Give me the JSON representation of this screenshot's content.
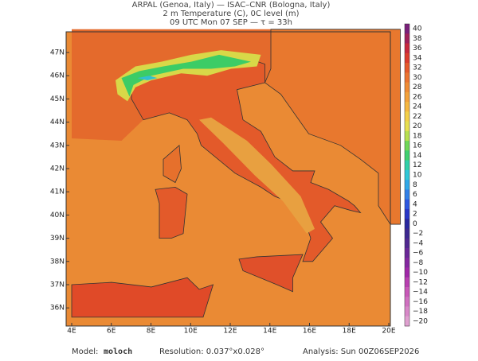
{
  "header": {
    "lines": [
      "ARPAL (Genoa, Italy)  —  ISAC–CNR (Bologna, Italy)",
      "2 m Temperature (C), 0C level (m)",
      "09 UTC Mon 07 SEP  —  τ = 33h"
    ]
  },
  "axes": {
    "lon_ticks": [
      "4E",
      "6E",
      "8E",
      "10E",
      "12E",
      "14E",
      "16E",
      "18E",
      "20E"
    ],
    "lat_ticks": [
      "47N",
      "46N",
      "45N",
      "44N",
      "43N",
      "42N",
      "41N",
      "40N",
      "39N",
      "38N",
      "37N",
      "36N"
    ]
  },
  "colorbar": [
    {
      "label": "40",
      "color": "#7a1f7a"
    },
    {
      "label": "38",
      "color": "#a0205a"
    },
    {
      "label": "36",
      "color": "#c8283c"
    },
    {
      "label": "34",
      "color": "#dc3c2c"
    },
    {
      "label": "32",
      "color": "#e65a2a"
    },
    {
      "label": "30",
      "color": "#ec7430"
    },
    {
      "label": "28",
      "color": "#f08c34"
    },
    {
      "label": "26",
      "color": "#f4a23a"
    },
    {
      "label": "24",
      "color": "#f6b840"
    },
    {
      "label": "22",
      "color": "#f4d048"
    },
    {
      "label": "20",
      "color": "#e8e050"
    },
    {
      "label": "18",
      "color": "#b8e050"
    },
    {
      "label": "16",
      "color": "#70d858"
    },
    {
      "label": "14",
      "color": "#40d070"
    },
    {
      "label": "12",
      "color": "#30d0a8"
    },
    {
      "label": "10",
      "color": "#30c8d8"
    },
    {
      "label": "8",
      "color": "#30a8e8"
    },
    {
      "label": "6",
      "color": "#3080e8"
    },
    {
      "label": "4",
      "color": "#2c58e0"
    },
    {
      "label": "2",
      "color": "#2838c8"
    },
    {
      "label": "0",
      "color": "#2828a0"
    },
    {
      "label": "−2",
      "color": "#3c2890"
    },
    {
      "label": "−4",
      "color": "#502890"
    },
    {
      "label": "−6",
      "color": "#6a2898"
    },
    {
      "label": "−8",
      "color": "#8428a0"
    },
    {
      "label": "−10",
      "color": "#a028a8"
    },
    {
      "label": "−12",
      "color": "#b840b0"
    },
    {
      "label": "−14",
      "color": "#c858b8"
    },
    {
      "label": "−16",
      "color": "#d070c0"
    },
    {
      "label": "−18",
      "color": "#d888c8"
    },
    {
      "label": "−20",
      "color": "#e0a0d0"
    }
  ],
  "footer": {
    "model_label": "Model:",
    "model": "moloch",
    "resolution": "Resolution: 0.037°x0.028°",
    "analysis": "Analysis: Sun 00Z06SEP2026"
  }
}
